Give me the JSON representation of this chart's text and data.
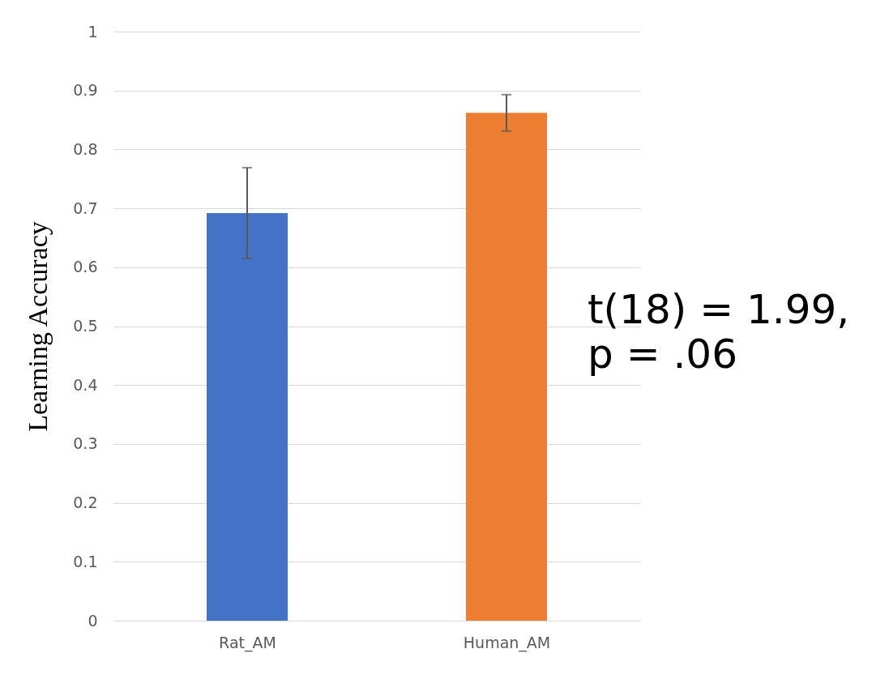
{
  "chart_data": {
    "type": "bar",
    "ylabel": "Learning Accuracy",
    "categories": [
      "Rat_AM",
      "Human_AM"
    ],
    "values": [
      0.692,
      0.862
    ],
    "colors": [
      "#4472c4",
      "#ed7d31"
    ],
    "errors": [
      [
        0.615,
        0.769
      ],
      [
        0.831,
        0.893
      ]
    ],
    "ylim": [
      0,
      1
    ],
    "yticks": [
      0,
      0.1,
      0.2,
      0.3,
      0.4,
      0.5,
      0.6,
      0.7,
      0.8,
      0.9,
      1
    ],
    "grid": "y",
    "annotations": [
      "t(18) = 1.99,",
      "p = .06"
    ]
  }
}
